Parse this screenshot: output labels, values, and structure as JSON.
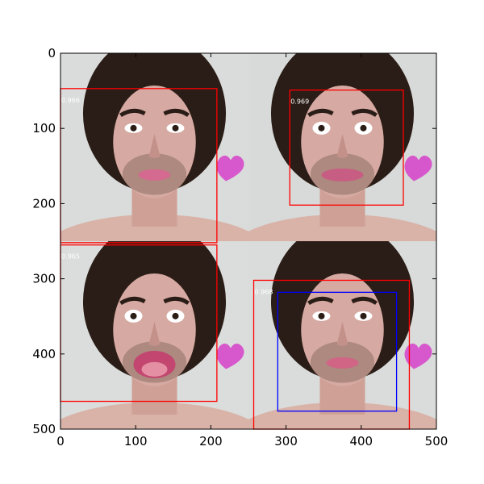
{
  "figure": {
    "x_ticks": [
      "0",
      "100",
      "200",
      "300",
      "400",
      "500"
    ],
    "y_ticks": [
      "0",
      "100",
      "200",
      "300",
      "400",
      "500"
    ],
    "x_range": [
      0,
      500
    ],
    "y_range": [
      0,
      500
    ],
    "y_inverted": true
  },
  "image_panels": [
    {
      "name": "neutral-face",
      "x0": 0,
      "y0": 0,
      "x1": 250,
      "y1": 250,
      "bg": "#d9dcda",
      "lip": "#d46a8f"
    },
    {
      "name": "frown-face",
      "x0": 250,
      "y0": 0,
      "x1": 500,
      "y1": 250,
      "bg": "#d7dad8",
      "lip": "#c85d83"
    },
    {
      "name": "tongue-face",
      "x0": 0,
      "y0": 250,
      "x1": 250,
      "y1": 500,
      "bg": "#dadddb",
      "lip": "#c2466f"
    },
    {
      "name": "neutral-face-2",
      "x0": 250,
      "y0": 250,
      "x1": 500,
      "y1": 500,
      "bg": "#d9dcda",
      "lip": "#d06586"
    }
  ],
  "boxes": [
    {
      "label": "0.966",
      "color": "#ff0000",
      "x0": 0,
      "y0": 47,
      "x1": 208,
      "y1": 252
    },
    {
      "label": "0.969",
      "color": "#ff0000",
      "x0": 305,
      "y0": 49,
      "x1": 456,
      "y1": 202
    },
    {
      "label": "0.965",
      "color": "#ff0000",
      "x0": 0,
      "y0": 255,
      "x1": 208,
      "y1": 463
    },
    {
      "label": "0.968",
      "color": "#ff0000",
      "x0": 257,
      "y0": 302,
      "x1": 464,
      "y1": 500
    },
    {
      "label": "",
      "color": "#0000ff",
      "x0": 289,
      "y0": 318,
      "x1": 447,
      "y1": 476
    }
  ]
}
